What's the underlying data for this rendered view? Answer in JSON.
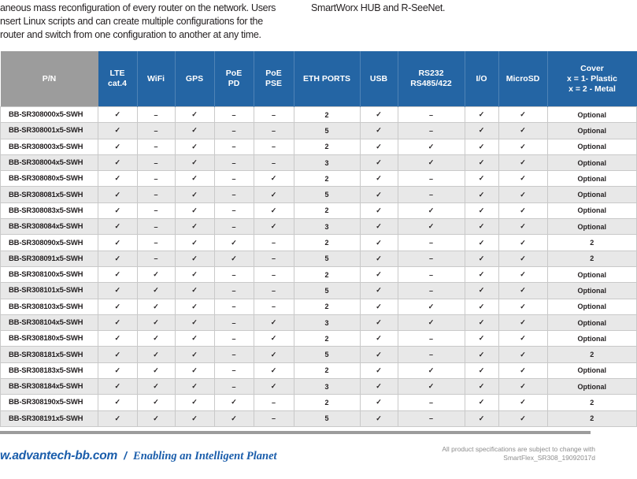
{
  "intro": {
    "left_lines": [
      "aneous mass reconfiguration of every router on the network. Users",
      "nsert Linux scripts and can create multiple configurations for the",
      "router and switch from one configuration to another at any time."
    ],
    "right_text": "SmartWorx HUB and R-SeeNet."
  },
  "table": {
    "symbols": {
      "check": "✓",
      "dash": "–"
    },
    "columns": [
      {
        "id": "pn",
        "label": "P/N"
      },
      {
        "id": "lte",
        "label": "LTE\ncat.4"
      },
      {
        "id": "wifi",
        "label": "WiFi"
      },
      {
        "id": "gps",
        "label": "GPS"
      },
      {
        "id": "poe_pd",
        "label": "PoE\nPD"
      },
      {
        "id": "poe_pse",
        "label": "PoE\nPSE"
      },
      {
        "id": "eth",
        "label": "ETH PORTS"
      },
      {
        "id": "usb",
        "label": "USB"
      },
      {
        "id": "rs232",
        "label": "RS232\nRS485/422"
      },
      {
        "id": "io",
        "label": "I/O"
      },
      {
        "id": "microsd",
        "label": "MicroSD"
      },
      {
        "id": "cover",
        "label": "Cover\nx = 1- Plastic\nx = 2 - Metal"
      }
    ],
    "rows": [
      {
        "pn": "BB-SR308000x5-SWH",
        "cells": [
          "check",
          "dash",
          "check",
          "dash",
          "dash",
          "2",
          "check",
          "dash",
          "check",
          "check",
          "Optional"
        ]
      },
      {
        "pn": "BB-SR308001x5-SWH",
        "cells": [
          "check",
          "dash",
          "check",
          "dash",
          "dash",
          "5",
          "check",
          "dash",
          "check",
          "check",
          "Optional"
        ]
      },
      {
        "pn": "BB-SR308003x5-SWH",
        "cells": [
          "check",
          "dash",
          "check",
          "dash",
          "dash",
          "2",
          "check",
          "check",
          "check",
          "check",
          "Optional"
        ]
      },
      {
        "pn": "BB-SR308004x5-SWH",
        "cells": [
          "check",
          "dash",
          "check",
          "dash",
          "dash",
          "3",
          "check",
          "check",
          "check",
          "check",
          "Optional"
        ]
      },
      {
        "pn": "BB-SR308080x5-SWH",
        "cells": [
          "check",
          "dash",
          "check",
          "dash",
          "check",
          "2",
          "check",
          "dash",
          "check",
          "check",
          "Optional"
        ]
      },
      {
        "pn": "BB-SR308081x5-SWH",
        "cells": [
          "check",
          "dash",
          "check",
          "dash",
          "check",
          "5",
          "check",
          "dash",
          "check",
          "check",
          "Optional"
        ]
      },
      {
        "pn": "BB-SR308083x5-SWH",
        "cells": [
          "check",
          "dash",
          "check",
          "dash",
          "check",
          "2",
          "check",
          "check",
          "check",
          "check",
          "Optional"
        ]
      },
      {
        "pn": "BB-SR308084x5-SWH",
        "cells": [
          "check",
          "dash",
          "check",
          "dash",
          "check",
          "3",
          "check",
          "check",
          "check",
          "check",
          "Optional"
        ]
      },
      {
        "pn": "BB-SR308090x5-SWH",
        "cells": [
          "check",
          "dash",
          "check",
          "check",
          "dash",
          "2",
          "check",
          "dash",
          "check",
          "check",
          "2"
        ]
      },
      {
        "pn": "BB-SR308091x5-SWH",
        "cells": [
          "check",
          "dash",
          "check",
          "check",
          "dash",
          "5",
          "check",
          "dash",
          "check",
          "check",
          "2"
        ]
      },
      {
        "pn": "BB-SR308100x5-SWH",
        "cells": [
          "check",
          "check",
          "check",
          "dash",
          "dash",
          "2",
          "check",
          "dash",
          "check",
          "check",
          "Optional"
        ]
      },
      {
        "pn": "BB-SR308101x5-SWH",
        "cells": [
          "check",
          "check",
          "check",
          "dash",
          "dash",
          "5",
          "check",
          "dash",
          "check",
          "check",
          "Optional"
        ]
      },
      {
        "pn": "BB-SR308103x5-SWH",
        "cells": [
          "check",
          "check",
          "check",
          "dash",
          "dash",
          "2",
          "check",
          "check",
          "check",
          "check",
          "Optional"
        ]
      },
      {
        "pn": "BB-SR308104x5-SWH",
        "cells": [
          "check",
          "check",
          "check",
          "dash",
          "check",
          "3",
          "check",
          "check",
          "check",
          "check",
          "Optional"
        ]
      },
      {
        "pn": "BB-SR308180x5-SWH",
        "cells": [
          "check",
          "check",
          "check",
          "dash",
          "check",
          "2",
          "check",
          "dash",
          "check",
          "check",
          "Optional"
        ]
      },
      {
        "pn": "BB-SR308181x5-SWH",
        "cells": [
          "check",
          "check",
          "check",
          "dash",
          "check",
          "5",
          "check",
          "dash",
          "check",
          "check",
          "2"
        ]
      },
      {
        "pn": "BB-SR308183x5-SWH",
        "cells": [
          "check",
          "check",
          "check",
          "dash",
          "check",
          "2",
          "check",
          "check",
          "check",
          "check",
          "Optional"
        ]
      },
      {
        "pn": "BB-SR308184x5-SWH",
        "cells": [
          "check",
          "check",
          "check",
          "dash",
          "check",
          "3",
          "check",
          "check",
          "check",
          "check",
          "Optional"
        ]
      },
      {
        "pn": "BB-SR308190x5-SWH",
        "cells": [
          "check",
          "check",
          "check",
          "check",
          "dash",
          "2",
          "check",
          "dash",
          "check",
          "check",
          "2"
        ]
      },
      {
        "pn": "BB-SR308191x5-SWH",
        "cells": [
          "check",
          "check",
          "check",
          "check",
          "dash",
          "5",
          "check",
          "dash",
          "check",
          "check",
          "2"
        ]
      }
    ]
  },
  "footer": {
    "website": "w.advantech-bb.com",
    "separator": "/",
    "tagline": "Enabling an Intelligent Planet",
    "note_line1": "All product specifications are subject to change with",
    "note_line2": "SmartFlex_SR308_19092017d"
  },
  "colors": {
    "header_blue": "#2465a4",
    "header_gray": "#9c9c9c",
    "row_alt_gray": "#e8e8e8",
    "grid_gray": "#c9c9c9",
    "footer_blue": "#1a5dab",
    "note_gray": "#8d8d8d",
    "divider_gray": "#9c9c9c"
  }
}
